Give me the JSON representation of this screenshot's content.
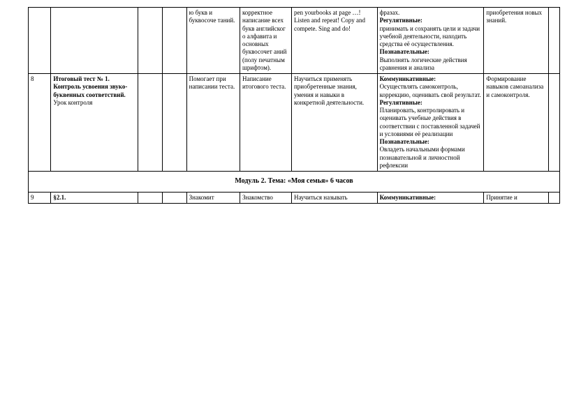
{
  "row1": {
    "c1": "",
    "c2": "",
    "c3": "",
    "c4": "",
    "c5": "ю букв и буквосоче таний.",
    "c6": "корректное написание всех букв английског о алфавита и основных буквосочет аний (полу печатным шрифтом).",
    "c7": "pen yourbooks at page …! Listen and repeat! Copy and compete. Sing and do!",
    "c8_a": "фразах.",
    "c8_b": "Регулятивные:",
    "c8_c": "принимать и сохранять цели и задачи учебной деятельности, находить средства её осуществления.",
    "c8_d": "Познавательные:",
    "c8_e": "Выполнять логические действия сравнения и анализа",
    "c9": "приобретения новых знаний.",
    "c10": ""
  },
  "row2": {
    "c1": "8",
    "c2_a": "Итоговый тест № 1. Контроль усвоения звуко- буквенных соответствий.",
    "c2_b": "Урок контроля",
    "c3": "",
    "c4": "",
    "c5": "Помогает при написании теста.",
    "c6": "Написание итогового теста.",
    "c7": "Научиться применять приобретенные знания, умения и навыки в конкретной деятельности.",
    "c8_a": "Коммуникативные:",
    "c8_b": "Осуществлять самоконтроль, коррекцию, оценивать свой результат.",
    "c8_c": "Регулятивные:",
    "c8_d": "Планировать, контролировать и оценивать учебные действия в соответствии с поставленной задачей и условиями её реализации",
    "c8_e": "Познавательные:",
    "c8_f": "Овладеть начальными формами познавательной и личностной рефлексии",
    "c9": "Формирование навыков самоанализа и самоконтроля.",
    "c10": ""
  },
  "module_title": "Модуль 2.   Тема:  «Моя семья»   6 часов",
  "row3": {
    "c1": "9",
    "c2": "§2.1.",
    "c3": "",
    "c4": "",
    "c5": "Знакомит",
    "c6": "Знакомство",
    "c7": "Научиться называть",
    "c8": "Коммуникативные:",
    "c9": "Принятие и",
    "c10": ""
  }
}
